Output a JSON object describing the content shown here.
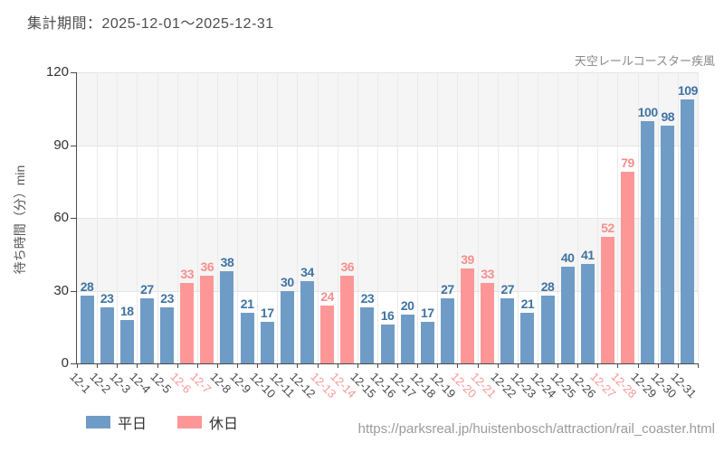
{
  "header": {
    "period": "集計期間：2025-12-01～2025-12-31"
  },
  "footer": {
    "url": "https://parksreal.jp/huistenbosch/attraction/rail_coaster.html"
  },
  "legend": {
    "weekday": "平日",
    "holiday": "休日"
  },
  "colors": {
    "weekday_bar": "#6f9cc7",
    "holiday_bar": "#fd9797",
    "weekday_label": "#3f73a2",
    "holiday_label": "#f98d8d",
    "weekday_tick": "#4a4a4a",
    "holiday_tick": "#f79797"
  },
  "chart_data": {
    "type": "bar",
    "title": "天空レールコースター疾風",
    "ylabel": "待ち時間（分）min",
    "ylim": [
      0,
      120
    ],
    "yticks": [
      0,
      30,
      60,
      90,
      120
    ],
    "grid": true,
    "legend_position": "bottom",
    "bars": [
      {
        "date": "12-1",
        "value": 28,
        "day_type": "weekday"
      },
      {
        "date": "12-2",
        "value": 23,
        "day_type": "weekday"
      },
      {
        "date": "12-3",
        "value": 18,
        "day_type": "weekday"
      },
      {
        "date": "12-4",
        "value": 27,
        "day_type": "weekday"
      },
      {
        "date": "12-5",
        "value": 23,
        "day_type": "weekday"
      },
      {
        "date": "12-6",
        "value": 33,
        "day_type": "holiday"
      },
      {
        "date": "12-7",
        "value": 36,
        "day_type": "holiday"
      },
      {
        "date": "12-8",
        "value": 38,
        "day_type": "weekday"
      },
      {
        "date": "12-9",
        "value": 21,
        "day_type": "weekday"
      },
      {
        "date": "12-10",
        "value": 17,
        "day_type": "weekday"
      },
      {
        "date": "12-11",
        "value": 30,
        "day_type": "weekday"
      },
      {
        "date": "12-12",
        "value": 34,
        "day_type": "weekday"
      },
      {
        "date": "12-13",
        "value": 24,
        "day_type": "holiday"
      },
      {
        "date": "12-14",
        "value": 36,
        "day_type": "holiday"
      },
      {
        "date": "12-15",
        "value": 23,
        "day_type": "weekday"
      },
      {
        "date": "12-16",
        "value": 16,
        "day_type": "weekday"
      },
      {
        "date": "12-17",
        "value": 20,
        "day_type": "weekday"
      },
      {
        "date": "12-18",
        "value": 17,
        "day_type": "weekday"
      },
      {
        "date": "12-19",
        "value": 27,
        "day_type": "weekday"
      },
      {
        "date": "12-20",
        "value": 39,
        "day_type": "holiday"
      },
      {
        "date": "12-21",
        "value": 33,
        "day_type": "holiday"
      },
      {
        "date": "12-22",
        "value": 27,
        "day_type": "weekday"
      },
      {
        "date": "12-23",
        "value": 21,
        "day_type": "weekday"
      },
      {
        "date": "12-24",
        "value": 28,
        "day_type": "weekday"
      },
      {
        "date": "12-25",
        "value": 40,
        "day_type": "weekday"
      },
      {
        "date": "12-26",
        "value": 41,
        "day_type": "weekday"
      },
      {
        "date": "12-27",
        "value": 52,
        "day_type": "holiday"
      },
      {
        "date": "12-28",
        "value": 79,
        "day_type": "holiday"
      },
      {
        "date": "12-29",
        "value": 100,
        "day_type": "weekday"
      },
      {
        "date": "12-30",
        "value": 98,
        "day_type": "weekday"
      },
      {
        "date": "12-31",
        "value": 109,
        "day_type": "weekday"
      }
    ]
  }
}
